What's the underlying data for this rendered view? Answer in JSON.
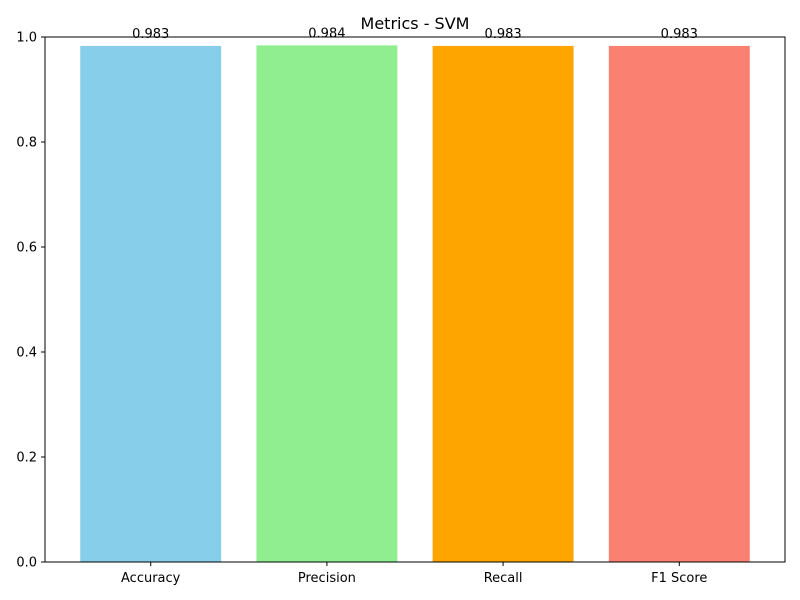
{
  "chart_data": {
    "type": "bar",
    "title": "Metrics - SVM",
    "xlabel": "",
    "ylabel": "",
    "categories": [
      "Accuracy",
      "Precision",
      "Recall",
      "F1 Score"
    ],
    "values": [
      0.983,
      0.984,
      0.983,
      0.983
    ],
    "value_labels": [
      "0.983",
      "0.984",
      "0.983",
      "0.983"
    ],
    "colors": [
      "#87ceeb",
      "#90ee90",
      "#ffa500",
      "#fa8072"
    ],
    "ylim": [
      0,
      1.0
    ],
    "yticks": [
      0.0,
      0.2,
      0.4,
      0.6,
      0.8,
      1.0
    ],
    "ytick_labels": [
      "0.0",
      "0.2",
      "0.4",
      "0.6",
      "0.8",
      "1.0"
    ],
    "grid": false,
    "legend": "none"
  }
}
